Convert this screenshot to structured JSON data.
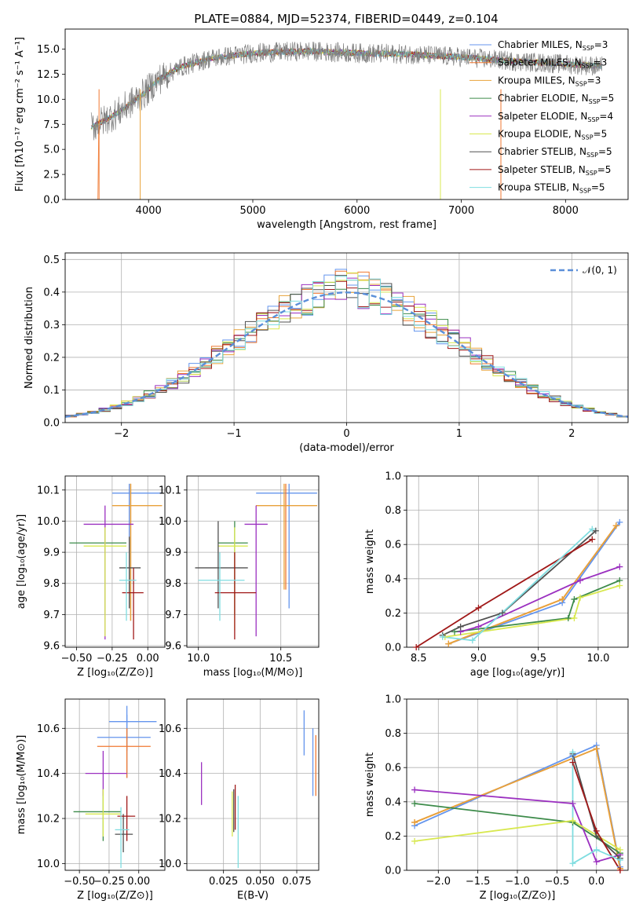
{
  "title": "PLATE=0884, MJD=52374, FIBERID=0449, z=0.104",
  "colors": [
    "#6495ed",
    "#f28c28",
    "#e0a030",
    "#2e8b57",
    "#9932cc",
    "#d4e157",
    "#555555",
    "#b22222",
    "#80deea"
  ],
  "models": [
    {
      "name": "Chabrier MILES",
      "nssp": "3",
      "color": "#6495ed"
    },
    {
      "name": "Salpeter MILES",
      "nssp": "3",
      "color": "#f07830"
    },
    {
      "name": "Kroupa MILES",
      "nssp": "3",
      "color": "#e8a33a"
    },
    {
      "name": "Chabrier ELODIE",
      "nssp": "5",
      "color": "#3d8b4a"
    },
    {
      "name": "Salpeter ELODIE",
      "nssp": "4",
      "color": "#9b30c0"
    },
    {
      "name": "Kroupa ELODIE",
      "nssp": "5",
      "color": "#d8e850"
    },
    {
      "name": "Chabrier STELIB",
      "nssp": "5",
      "color": "#505050"
    },
    {
      "name": "Salpeter STELIB",
      "nssp": "5",
      "color": "#a01818"
    },
    {
      "name": "Kroupa STELIB",
      "nssp": "5",
      "color": "#7fdde0"
    }
  ],
  "chart_data": [
    {
      "type": "line",
      "id": "spectrum",
      "xlabel": "wavelength [Angstrom, rest frame]",
      "ylabel": "Flux [fλ10⁻¹⁷ erg cm⁻² s⁻¹ A⁻¹]",
      "xlim": [
        3200,
        8600
      ],
      "ylim": [
        0,
        17
      ],
      "xticks": [
        4000,
        5000,
        6000,
        7000,
        8000
      ],
      "yticks": [
        0.0,
        2.5,
        5.0,
        7.5,
        10.0,
        12.5,
        15.0
      ],
      "continuum": [
        [
          3450,
          7.2
        ],
        [
          3700,
          8.6
        ],
        [
          3850,
          9.8
        ],
        [
          3950,
          10.5
        ],
        [
          4100,
          12.0
        ],
        [
          4300,
          13.2
        ],
        [
          4600,
          14.1
        ],
        [
          5000,
          14.6
        ],
        [
          5500,
          14.8
        ],
        [
          6000,
          14.6
        ],
        [
          6500,
          14.5
        ],
        [
          7000,
          14.2
        ],
        [
          7500,
          13.8
        ],
        [
          8000,
          13.5
        ],
        [
          8350,
          13.3
        ]
      ],
      "obs_range": [
        3450,
        8350
      ]
    },
    {
      "type": "step",
      "id": "residuals",
      "xlabel": "(data-model)/error",
      "ylabel": "Normed distribution",
      "xlim": [
        -2.5,
        2.5
      ],
      "ylim": [
        0,
        0.52
      ],
      "xticks": [
        -2,
        -1,
        0,
        1,
        2
      ],
      "yticks": [
        0.0,
        0.1,
        0.2,
        0.3,
        0.4,
        0.5
      ],
      "legend": "𝒩(0, 1)"
    },
    {
      "type": "scatter",
      "id": "age_vs_Z",
      "xlabel": "Z [log₁₀(Z/Z⊙)]",
      "ylabel": "age  [log₁₀(age/yr)]",
      "xlim": [
        -0.58,
        0.12
      ],
      "ylim": [
        9.595,
        10.145
      ],
      "xticks": [
        -0.5,
        -0.25,
        0.0
      ],
      "xticklabels": [
        "−0.50",
        "−0.25",
        "0.00"
      ],
      "yticks": [
        9.6,
        9.7,
        9.8,
        9.9,
        10.0,
        10.1
      ],
      "points": [
        {
          "x": -0.13,
          "y": 10.09,
          "xe": [
            -0.25,
            0.1
          ],
          "ye": [
            9.72,
            10.12
          ],
          "c": 0
        },
        {
          "x": -0.12,
          "y": 10.05,
          "xe": [
            -0.25,
            0.1
          ],
          "ye": [
            9.68,
            10.12
          ],
          "c": 1
        },
        {
          "x": -0.12,
          "y": 10.05,
          "xe": [
            -0.25,
            0.1
          ],
          "ye": [
            9.68,
            10.12
          ],
          "c": 2
        },
        {
          "x": -0.3,
          "y": 9.93,
          "xe": [
            -0.55,
            -0.15
          ],
          "ye": [
            9.7,
            9.98
          ],
          "c": 3
        },
        {
          "x": -0.3,
          "y": 9.99,
          "xe": [
            -0.45,
            -0.1
          ],
          "ye": [
            9.62,
            10.05
          ],
          "c": 4
        },
        {
          "x": -0.3,
          "y": 9.92,
          "xe": [
            -0.45,
            -0.15
          ],
          "ye": [
            9.63,
            9.98
          ],
          "c": 5
        },
        {
          "x": -0.13,
          "y": 9.85,
          "xe": [
            -0.2,
            -0.05
          ],
          "ye": [
            9.72,
            9.95
          ],
          "c": 6
        },
        {
          "x": -0.1,
          "y": 9.77,
          "xe": [
            -0.18,
            -0.03
          ],
          "ye": [
            9.62,
            9.85
          ],
          "c": 7
        },
        {
          "x": -0.15,
          "y": 9.81,
          "xe": [
            -0.2,
            -0.08
          ],
          "ye": [
            9.68,
            9.9
          ],
          "c": 8
        }
      ]
    },
    {
      "type": "scatter",
      "id": "age_vs_mass",
      "xlabel": "mass [log₁₀(M/M⊙)]",
      "ylabel": "",
      "xlim": [
        9.93,
        10.73
      ],
      "ylim": [
        9.595,
        10.145
      ],
      "xticks": [
        10.0,
        10.5
      ],
      "xticklabels": [
        "10.0",
        "10.5"
      ],
      "yticks": [
        9.6,
        9.7,
        9.8,
        9.9,
        10.0,
        10.1
      ],
      "points": [
        {
          "x": 10.55,
          "y": 10.09,
          "xe": [
            10.35,
            10.72
          ],
          "ye": [
            9.72,
            10.12
          ],
          "c": 0
        },
        {
          "x": 10.53,
          "y": 10.05,
          "xe": [
            10.35,
            10.72
          ],
          "ye": [
            9.78,
            10.12
          ],
          "c": 1
        },
        {
          "x": 10.52,
          "y": 10.05,
          "xe": [
            10.35,
            10.72
          ],
          "ye": [
            9.78,
            10.12
          ],
          "c": 2
        },
        {
          "x": 10.22,
          "y": 9.93,
          "xe": [
            10.12,
            10.3
          ],
          "ye": [
            9.7,
            10.0
          ],
          "c": 3
        },
        {
          "x": 10.35,
          "y": 9.99,
          "xe": [
            10.28,
            10.42
          ],
          "ye": [
            9.63,
            10.05
          ],
          "c": 4
        },
        {
          "x": 10.22,
          "y": 9.92,
          "xe": [
            10.12,
            10.3
          ],
          "ye": [
            9.65,
            9.98
          ],
          "c": 5
        },
        {
          "x": 10.12,
          "y": 9.85,
          "xe": [
            9.98,
            10.3
          ],
          "ye": [
            9.72,
            10.0
          ],
          "c": 6
        },
        {
          "x": 10.22,
          "y": 9.77,
          "xe": [
            10.1,
            10.35
          ],
          "ye": [
            9.62,
            9.9
          ],
          "c": 7
        },
        {
          "x": 10.13,
          "y": 9.81,
          "xe": [
            10.0,
            10.28
          ],
          "ye": [
            9.68,
            9.9
          ],
          "c": 8
        }
      ]
    },
    {
      "type": "line",
      "id": "massweight_vs_age",
      "xlabel": "age  [log₁₀(age/yr)]",
      "ylabel": "mass weight",
      "xlim": [
        8.4,
        10.25
      ],
      "ylim": [
        0,
        1.0
      ],
      "xticks": [
        8.5,
        9.0,
        9.5,
        10.0
      ],
      "yticks": [
        0.0,
        0.2,
        0.4,
        0.6,
        0.8,
        1.0
      ],
      "series": [
        {
          "c": 0,
          "x": [
            8.75,
            9.7,
            10.18
          ],
          "y": [
            0.02,
            0.26,
            0.73
          ]
        },
        {
          "c": 1,
          "x": [
            8.75,
            9.7,
            10.15
          ],
          "y": [
            0.02,
            0.28,
            0.71
          ]
        },
        {
          "c": 2,
          "x": [
            8.75,
            9.7,
            10.15
          ],
          "y": [
            0.02,
            0.28,
            0.71
          ]
        },
        {
          "c": 3,
          "x": [
            8.8,
            9.75,
            9.8,
            10.18
          ],
          "y": [
            0.09,
            0.17,
            0.28,
            0.39
          ]
        },
        {
          "c": 4,
          "x": [
            8.85,
            9.0,
            9.85,
            10.18
          ],
          "y": [
            0.09,
            0.12,
            0.39,
            0.47
          ]
        },
        {
          "c": 5,
          "x": [
            8.72,
            9.8,
            9.85,
            10.18
          ],
          "y": [
            0.06,
            0.17,
            0.29,
            0.36
          ]
        },
        {
          "c": 6,
          "x": [
            8.7,
            8.85,
            9.2,
            9.98
          ],
          "y": [
            0.07,
            0.12,
            0.2,
            0.68
          ]
        },
        {
          "c": 7,
          "x": [
            8.48,
            9.0,
            9.95
          ],
          "y": [
            0.0,
            0.23,
            0.63
          ]
        },
        {
          "c": 8,
          "x": [
            8.7,
            8.95,
            9.95
          ],
          "y": [
            0.06,
            0.04,
            0.69
          ]
        }
      ]
    },
    {
      "type": "scatter",
      "id": "mass_vs_Z",
      "xlabel": "Z [log₁₀(Z/Z⊙)]",
      "ylabel": "mass [log₁₀(M/M⊙)]",
      "xlim": [
        -0.62,
        0.22
      ],
      "ylim": [
        9.97,
        10.73
      ],
      "xticks": [
        -0.5,
        -0.25,
        0.0
      ],
      "xticklabels": [
        "−0.50",
        "−0.25",
        "0.00"
      ],
      "yticks": [
        10.0,
        10.2,
        10.4,
        10.6
      ],
      "points": [
        {
          "x": -0.1,
          "y": 10.63,
          "xe": [
            -0.25,
            0.15
          ],
          "ye": [
            10.5,
            10.7
          ],
          "c": 0
        },
        {
          "x": -0.1,
          "y": 10.56,
          "xe": [
            -0.35,
            0.1
          ],
          "ye": [
            10.38,
            10.66
          ],
          "c": 0
        },
        {
          "x": -0.1,
          "y": 10.52,
          "xe": [
            -0.35,
            0.1
          ],
          "ye": [
            10.38,
            10.6
          ],
          "c": 1
        },
        {
          "x": -0.3,
          "y": 10.23,
          "xe": [
            -0.55,
            -0.15
          ],
          "ye": [
            10.1,
            10.33
          ],
          "c": 3
        },
        {
          "x": -0.3,
          "y": 10.4,
          "xe": [
            -0.45,
            -0.1
          ],
          "ye": [
            10.3,
            10.5
          ],
          "c": 4
        },
        {
          "x": -0.3,
          "y": 10.22,
          "xe": [
            -0.45,
            -0.15
          ],
          "ye": [
            10.12,
            10.33
          ],
          "c": 5
        },
        {
          "x": -0.13,
          "y": 10.13,
          "xe": [
            -0.2,
            -0.05
          ],
          "ye": [
            10.05,
            10.22
          ],
          "c": 6
        },
        {
          "x": -0.1,
          "y": 10.21,
          "xe": [
            -0.18,
            -0.03
          ],
          "ye": [
            10.1,
            10.3
          ],
          "c": 7
        },
        {
          "x": -0.15,
          "y": 10.15,
          "xe": [
            -0.2,
            -0.08
          ],
          "ye": [
            9.98,
            10.25
          ],
          "c": 8
        }
      ]
    },
    {
      "type": "scatter",
      "id": "mass_vs_ebv",
      "xlabel": "E(B-V)",
      "ylabel": "",
      "xlim": [
        0.0,
        0.09
      ],
      "ylim": [
        9.97,
        10.73
      ],
      "xticks": [
        0.025,
        0.05,
        0.075
      ],
      "xticklabels": [
        "0.025",
        "0.050",
        "0.075"
      ],
      "yticks": [
        10.0,
        10.2,
        10.4,
        10.6
      ],
      "points": [
        {
          "x": 0.01,
          "y": 10.35,
          "ye": [
            10.26,
            10.45
          ],
          "c": 4
        },
        {
          "x": 0.031,
          "y": 10.22,
          "ye": [
            10.12,
            10.32
          ],
          "c": 5
        },
        {
          "x": 0.033,
          "y": 10.25,
          "ye": [
            10.15,
            10.35
          ],
          "c": 7
        },
        {
          "x": 0.035,
          "y": 10.15,
          "ye": [
            9.98,
            10.3
          ],
          "c": 8
        },
        {
          "x": 0.032,
          "y": 10.24,
          "ye": [
            10.14,
            10.33
          ],
          "c": 6
        },
        {
          "x": 0.08,
          "y": 10.58,
          "ye": [
            10.48,
            10.68
          ],
          "c": 0
        },
        {
          "x": 0.086,
          "y": 10.45,
          "ye": [
            10.3,
            10.6
          ],
          "c": 0
        },
        {
          "x": 0.088,
          "y": 10.44,
          "ye": [
            10.3,
            10.57
          ],
          "c": 1
        }
      ]
    },
    {
      "type": "line",
      "id": "massweight_vs_Z",
      "xlabel": "Z [log₁₀(Z/Z⊙)]",
      "ylabel": "mass weight",
      "xlim": [
        -2.4,
        0.4
      ],
      "ylim": [
        0,
        1.0
      ],
      "xticks": [
        -2.0,
        -1.5,
        -1.0,
        -0.5,
        0.0
      ],
      "xticklabels": [
        "−2.0",
        "−1.5",
        "−1.0",
        "−0.5",
        "0.0"
      ],
      "yticks": [
        0.0,
        0.2,
        0.4,
        0.6,
        0.8,
        1.0
      ],
      "series": [
        {
          "c": 0,
          "x": [
            -2.3,
            -0.3,
            0.0,
            0.3
          ],
          "y": [
            0.26,
            0.67,
            0.73,
            0.02
          ]
        },
        {
          "c": 1,
          "x": [
            -2.3,
            0.0,
            0.3
          ],
          "y": [
            0.28,
            0.71,
            0.01
          ]
        },
        {
          "c": 2,
          "x": [
            -2.3,
            0.0,
            0.3
          ],
          "y": [
            0.28,
            0.71,
            0.01
          ]
        },
        {
          "c": 3,
          "x": [
            -2.3,
            -0.3,
            0.3
          ],
          "y": [
            0.39,
            0.28,
            0.1
          ]
        },
        {
          "c": 4,
          "x": [
            -2.3,
            -0.3,
            0.0,
            0.3
          ],
          "y": [
            0.47,
            0.39,
            0.05,
            0.09
          ]
        },
        {
          "c": 5,
          "x": [
            -2.3,
            -0.3,
            0.3
          ],
          "y": [
            0.17,
            0.29,
            0.12
          ]
        },
        {
          "c": 6,
          "x": [
            -0.3,
            0.0,
            0.3
          ],
          "y": [
            0.68,
            0.2,
            0.07
          ]
        },
        {
          "c": 7,
          "x": [
            -0.3,
            0.0,
            0.3
          ],
          "y": [
            0.63,
            0.23,
            0.0
          ]
        },
        {
          "c": 8,
          "x": [
            -0.3,
            -0.3,
            0.0,
            0.3
          ],
          "y": [
            0.69,
            0.04,
            0.12,
            0.06
          ]
        }
      ]
    }
  ]
}
